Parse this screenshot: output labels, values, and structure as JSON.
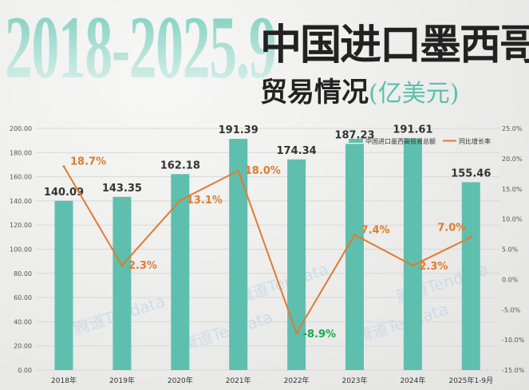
{
  "header": {
    "years": "2018-2025.9",
    "title_line1": "中国进口墨西哥",
    "title_line2": "贸易情况",
    "unit": "(亿美元)"
  },
  "watermark": "腾道Tendata",
  "colors": {
    "bar": "#5fbfae",
    "line": "#e07b2e",
    "negative_label": "#1aa84a",
    "title_teal": "#5cc0ad"
  },
  "chart_data": {
    "type": "bar+line",
    "categories": [
      "2018年",
      "2019年",
      "2020年",
      "2021年",
      "2022年",
      "2023年",
      "2024年",
      "2025年1-9月"
    ],
    "series": [
      {
        "name": "中国进口墨西哥贸易总额",
        "type": "bar",
        "axis": "left",
        "values": [
          140.09,
          143.35,
          162.18,
          191.39,
          174.34,
          187.23,
          191.61,
          155.46
        ],
        "labels": [
          "140.09",
          "143.35",
          "162.18",
          "191.39",
          "174.34",
          "187.23",
          "191.61",
          "155.46"
        ]
      },
      {
        "name": "同比增长率",
        "type": "line",
        "axis": "right",
        "values": [
          18.7,
          2.3,
          13.1,
          18.0,
          -8.9,
          7.4,
          2.3,
          7.0
        ],
        "labels": [
          "18.7%",
          "2.3%",
          "13.1%",
          "18.0%",
          "-8.9%",
          "7.4%",
          "2.3%",
          "7.0%"
        ]
      }
    ],
    "left_axis": {
      "range": [
        0,
        200
      ],
      "ticks": [
        "0.00",
        "20.00",
        "40.00",
        "60.00",
        "80.00",
        "100.00",
        "120.00",
        "140.00",
        "160.00",
        "180.00",
        "200.00"
      ]
    },
    "right_axis": {
      "range": [
        -15,
        25
      ],
      "ticks": [
        "-15.0%",
        "-10.0%",
        "-5.0%",
        "0.0%",
        "5.0%",
        "10.0%",
        "15.0%",
        "20.0%",
        "25.0%"
      ]
    },
    "grid": true,
    "legend": "top-right"
  }
}
